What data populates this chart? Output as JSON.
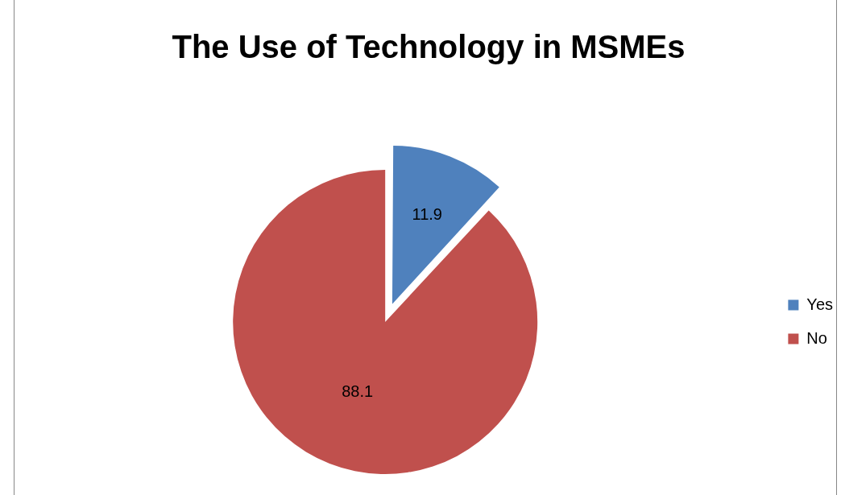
{
  "chart_data": {
    "type": "pie",
    "title": "The Use of Technology in MSMEs",
    "categories": [
      "Yes",
      "No"
    ],
    "values": [
      11.9,
      88.1
    ],
    "colors": [
      "#4f81bd",
      "#c0504d"
    ],
    "legend": "right",
    "data_labels": true
  }
}
